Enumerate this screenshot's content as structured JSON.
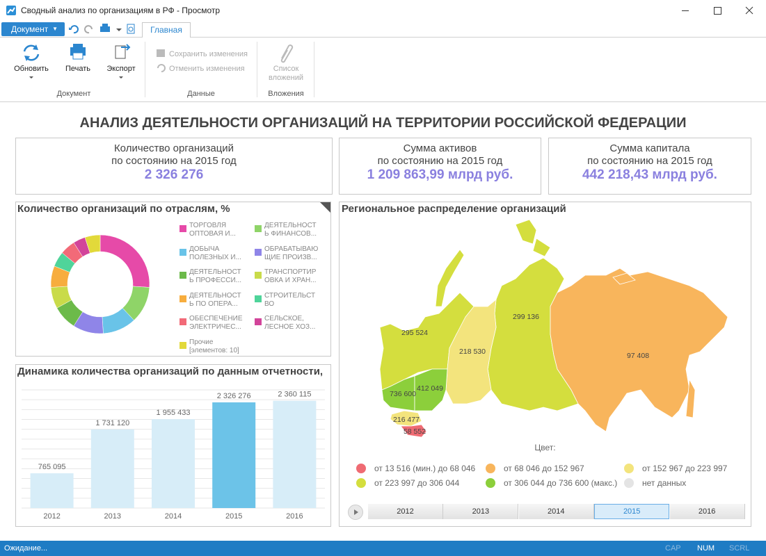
{
  "window": {
    "title": "Сводный анализ по организациям в РФ - Просмотр"
  },
  "ribbon": {
    "document_menu": "Документ",
    "tabs": [
      "Главная"
    ],
    "groups": [
      {
        "label": "Документ",
        "buttons": [
          "Обновить",
          "Печать",
          "Экспорт"
        ]
      },
      {
        "label": "Данные",
        "buttons": [
          "Сохранить изменения",
          "Отменить изменения"
        ]
      },
      {
        "label": "Вложения",
        "buttons": [
          "Список вложений"
        ]
      }
    ]
  },
  "dashboard": {
    "title": "АНАЛИЗ ДЕЯТЕЛЬНОСТИ ОРГАНИЗАЦИЙ НА ТЕРРИТОРИИ РОССИЙСКОЙ ФЕДЕРАЦИИ",
    "kpis": [
      {
        "label": "Количество организаций",
        "sublabel": "по состоянию на 2015 год",
        "value": "2 326 276"
      },
      {
        "label": "Сумма активов",
        "sublabel": "по состоянию на 2015 год",
        "value": "1 209 863,99 млрд руб."
      },
      {
        "label": "Сумма капитала",
        "sublabel": "по состоянию на 2015 год",
        "value": "442 218,43 млрд руб."
      }
    ]
  },
  "chart_data": [
    {
      "type": "pie",
      "donut": true,
      "title": "Количество организаций по отраслям, %",
      "categories": [
        "ТОРГОВЛЯ\nОПТОВАЯ И...",
        "ДЕЯТЕЛЬНОСТ\nЬ ФИНАНСОВ...",
        "ДОБЫЧА\nПОЛЕЗНЫХ И...",
        "ОБРАБАТЫВАЮ\nЩИЕ ПРОИЗВ...",
        "ДЕЯТЕЛЬНОСТ\nЬ ПРОФЕССИ...",
        "ТРАНСПОРТИР\nОВКА И ХРАН...",
        "ДЕЯТЕЛЬНОСТ\nЬ ПО ОПЕРА...",
        "СТРОИТЕЛЬСТ\nВО",
        "ОБЕСПЕЧЕНИЕ\nЭЛЕКТРИЧЕС...",
        "СЕЛЬСКОЕ,\nЛЕСНОЕ ХОЗ...",
        "Прочие\n[элементов: 10]"
      ],
      "values": [
        26,
        12,
        11,
        10,
        8,
        7,
        7,
        5,
        5,
        4,
        5
      ],
      "colors": [
        "#e64aa8",
        "#8fd468",
        "#69c3e8",
        "#8f85e8",
        "#6cba4a",
        "#c9db4a",
        "#f7ad3e",
        "#4fd49a",
        "#f26a78",
        "#d2449a",
        "#e2d93a"
      ]
    },
    {
      "type": "bar",
      "title": "Динамика количества организаций по данным отчетности,",
      "categories": [
        "2012",
        "2013",
        "2014",
        "2015",
        "2016"
      ],
      "values": [
        765095,
        1731120,
        1955433,
        2326276,
        2360115
      ],
      "value_labels": [
        "765 095",
        "1 731 120",
        "1 955 433",
        "2 326 276",
        "2 360 115"
      ],
      "colors": [
        "#d7edf8",
        "#d7edf8",
        "#d7edf8",
        "#6cc3e8",
        "#d7edf8"
      ],
      "ylim": [
        0,
        2600000
      ],
      "grid": true
    }
  ],
  "map": {
    "title": "Региональное распределение организаций",
    "regions": [
      {
        "label": "295 524",
        "color": "#d4de3e"
      },
      {
        "label": "299 136",
        "color": "#d4de3e"
      },
      {
        "label": "218 530",
        "color": "#f3e47d"
      },
      {
        "label": "97 408",
        "color": "#f8b55c"
      },
      {
        "label": "736 600",
        "color": "#8ccf3b"
      },
      {
        "label": "412 049",
        "color": "#8ccf3b"
      },
      {
        "label": "216 477",
        "color": "#f3e47d"
      },
      {
        "label": "58 552",
        "color": "#ef6b73"
      }
    ],
    "legend_title": "Цвет:",
    "legend": [
      {
        "label": "от 13 516 (мин.) до 68 046",
        "color": "#ef6b73"
      },
      {
        "label": "от 68 046 до 152 967",
        "color": "#f8b55c"
      },
      {
        "label": "от 152 967 до 223 997",
        "color": "#f3e47d"
      },
      {
        "label": "от 223 997 до 306 044",
        "color": "#d4de3e"
      },
      {
        "label": "от 306 044 до 736 600 (макс.)",
        "color": "#8ccf3b"
      },
      {
        "label": "нет данных",
        "color": "#e4e4e4"
      }
    ],
    "years": [
      "2012",
      "2013",
      "2014",
      "2015",
      "2016"
    ],
    "selected": "2015"
  },
  "status_bar": {
    "state": "Ожидание...",
    "indicators": [
      {
        "label": "CAP",
        "active": false
      },
      {
        "label": "NUM",
        "active": true
      },
      {
        "label": "SCRL",
        "active": false
      }
    ]
  }
}
